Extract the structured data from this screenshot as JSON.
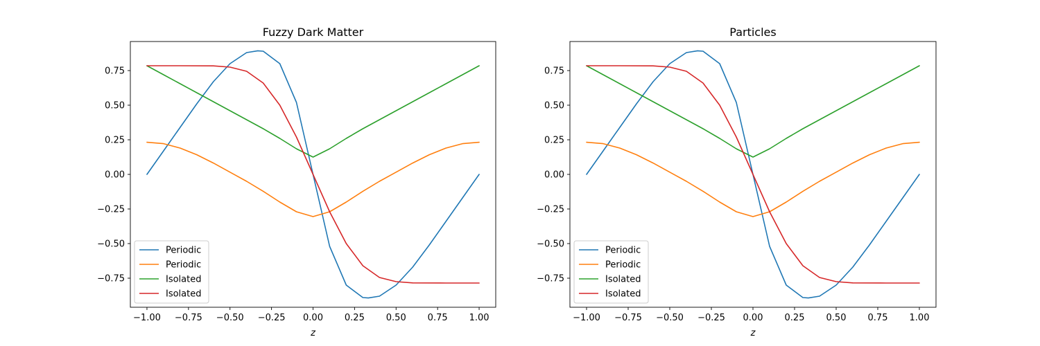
{
  "chart_data": [
    {
      "type": "line",
      "title": "Fuzzy Dark Matter",
      "xlabel": "z",
      "ylabel": "",
      "xlim": [
        -1.1,
        1.1
      ],
      "ylim": [
        -0.96,
        0.96
      ],
      "xticks": [
        -1.0,
        -0.75,
        -0.5,
        -0.25,
        0.0,
        0.25,
        0.5,
        0.75,
        1.0
      ],
      "xtick_labels": [
        "−1.00",
        "−0.75",
        "−0.50",
        "−0.25",
        "0.00",
        "0.25",
        "0.50",
        "0.75",
        "1.00"
      ],
      "yticks": [
        -0.75,
        -0.5,
        -0.25,
        0.0,
        0.25,
        0.5,
        0.75
      ],
      "ytick_labels": [
        "−0.75",
        "−0.50",
        "−0.25",
        "0.00",
        "0.25",
        "0.50",
        "0.75"
      ],
      "legend_position": "lower-left",
      "series": [
        {
          "name": "Periodic",
          "color": "#1f77b4",
          "x": [
            -1.0,
            -0.9,
            -0.8,
            -0.7,
            -0.6,
            -0.5,
            -0.4,
            -0.333,
            -0.3,
            -0.2,
            -0.1,
            0.0,
            0.1,
            0.2,
            0.3,
            0.333,
            0.4,
            0.5,
            0.6,
            0.7,
            0.8,
            0.9,
            1.0
          ],
          "y": [
            0.0,
            0.17,
            0.34,
            0.51,
            0.67,
            0.8,
            0.88,
            0.893,
            0.89,
            0.8,
            0.52,
            0.0,
            -0.52,
            -0.8,
            -0.89,
            -0.893,
            -0.88,
            -0.8,
            -0.67,
            -0.51,
            -0.34,
            -0.17,
            0.0
          ]
        },
        {
          "name": "Periodic",
          "color": "#ff7f0e",
          "x": [
            -1.0,
            -0.9,
            -0.8,
            -0.7,
            -0.6,
            -0.5,
            -0.4,
            -0.3,
            -0.2,
            -0.1,
            0.0,
            0.1,
            0.2,
            0.3,
            0.4,
            0.5,
            0.6,
            0.7,
            0.8,
            0.9,
            1.0
          ],
          "y": [
            0.232,
            0.222,
            0.19,
            0.142,
            0.082,
            0.016,
            -0.05,
            -0.122,
            -0.2,
            -0.27,
            -0.305,
            -0.27,
            -0.2,
            -0.122,
            -0.05,
            0.016,
            0.082,
            0.142,
            0.19,
            0.222,
            0.232
          ]
        },
        {
          "name": "Isolated",
          "color": "#2ca02c",
          "x": [
            -1.0,
            -0.9,
            -0.8,
            -0.7,
            -0.6,
            -0.5,
            -0.4,
            -0.3,
            -0.2,
            -0.1,
            0.0,
            0.1,
            0.2,
            0.3,
            0.4,
            0.5,
            0.6,
            0.7,
            0.8,
            0.9,
            1.0
          ],
          "y": [
            0.785,
            0.72,
            0.655,
            0.59,
            0.525,
            0.46,
            0.395,
            0.33,
            0.26,
            0.185,
            0.125,
            0.185,
            0.26,
            0.33,
            0.395,
            0.46,
            0.525,
            0.59,
            0.655,
            0.72,
            0.785
          ]
        },
        {
          "name": "Isolated",
          "color": "#d62728",
          "x": [
            -1.0,
            -0.8,
            -0.6,
            -0.5,
            -0.4,
            -0.3,
            -0.2,
            -0.1,
            0.0,
            0.1,
            0.2,
            0.3,
            0.4,
            0.5,
            0.6,
            0.8,
            1.0
          ],
          "y": [
            0.785,
            0.785,
            0.784,
            0.775,
            0.745,
            0.66,
            0.5,
            0.27,
            0.0,
            -0.27,
            -0.5,
            -0.66,
            -0.745,
            -0.775,
            -0.784,
            -0.785,
            -0.785
          ]
        }
      ]
    },
    {
      "type": "line",
      "title": "Particles",
      "xlabel": "z",
      "ylabel": "",
      "xlim": [
        -1.1,
        1.1
      ],
      "ylim": [
        -0.96,
        0.96
      ],
      "xticks": [
        -1.0,
        -0.75,
        -0.5,
        -0.25,
        0.0,
        0.25,
        0.5,
        0.75,
        1.0
      ],
      "xtick_labels": [
        "−1.00",
        "−0.75",
        "−0.50",
        "−0.25",
        "0.00",
        "0.25",
        "0.50",
        "0.75",
        "1.00"
      ],
      "yticks": [
        -0.75,
        -0.5,
        -0.25,
        0.0,
        0.25,
        0.5,
        0.75
      ],
      "ytick_labels": [
        "−0.75",
        "−0.50",
        "−0.25",
        "0.00",
        "0.25",
        "0.50",
        "0.75"
      ],
      "legend_position": "lower-left",
      "series": [
        {
          "name": "Periodic",
          "color": "#1f77b4",
          "x": [
            -1.0,
            -0.9,
            -0.8,
            -0.7,
            -0.6,
            -0.5,
            -0.4,
            -0.333,
            -0.3,
            -0.2,
            -0.1,
            0.0,
            0.1,
            0.2,
            0.3,
            0.333,
            0.4,
            0.5,
            0.6,
            0.7,
            0.8,
            0.9,
            1.0
          ],
          "y": [
            0.0,
            0.17,
            0.34,
            0.51,
            0.67,
            0.8,
            0.88,
            0.893,
            0.89,
            0.8,
            0.52,
            0.0,
            -0.52,
            -0.8,
            -0.89,
            -0.893,
            -0.88,
            -0.8,
            -0.67,
            -0.51,
            -0.34,
            -0.17,
            0.0
          ]
        },
        {
          "name": "Periodic",
          "color": "#ff7f0e",
          "x": [
            -1.0,
            -0.9,
            -0.8,
            -0.7,
            -0.6,
            -0.5,
            -0.4,
            -0.3,
            -0.2,
            -0.1,
            0.0,
            0.1,
            0.2,
            0.3,
            0.4,
            0.5,
            0.6,
            0.7,
            0.8,
            0.9,
            1.0
          ],
          "y": [
            0.232,
            0.222,
            0.19,
            0.142,
            0.082,
            0.016,
            -0.05,
            -0.122,
            -0.2,
            -0.27,
            -0.305,
            -0.27,
            -0.2,
            -0.122,
            -0.05,
            0.016,
            0.082,
            0.142,
            0.19,
            0.222,
            0.232
          ]
        },
        {
          "name": "Isolated",
          "color": "#2ca02c",
          "x": [
            -1.0,
            -0.9,
            -0.8,
            -0.7,
            -0.6,
            -0.5,
            -0.4,
            -0.3,
            -0.2,
            -0.1,
            0.0,
            0.1,
            0.2,
            0.3,
            0.4,
            0.5,
            0.6,
            0.7,
            0.8,
            0.9,
            1.0
          ],
          "y": [
            0.785,
            0.72,
            0.655,
            0.59,
            0.525,
            0.46,
            0.395,
            0.33,
            0.26,
            0.185,
            0.125,
            0.185,
            0.26,
            0.33,
            0.395,
            0.46,
            0.525,
            0.59,
            0.655,
            0.72,
            0.785
          ]
        },
        {
          "name": "Isolated",
          "color": "#d62728",
          "x": [
            -1.0,
            -0.8,
            -0.6,
            -0.5,
            -0.4,
            -0.3,
            -0.2,
            -0.1,
            0.0,
            0.1,
            0.2,
            0.3,
            0.4,
            0.5,
            0.6,
            0.8,
            1.0
          ],
          "y": [
            0.785,
            0.785,
            0.784,
            0.775,
            0.745,
            0.66,
            0.5,
            0.27,
            0.0,
            -0.27,
            -0.5,
            -0.66,
            -0.745,
            -0.775,
            -0.784,
            -0.785,
            -0.785
          ]
        }
      ]
    }
  ]
}
